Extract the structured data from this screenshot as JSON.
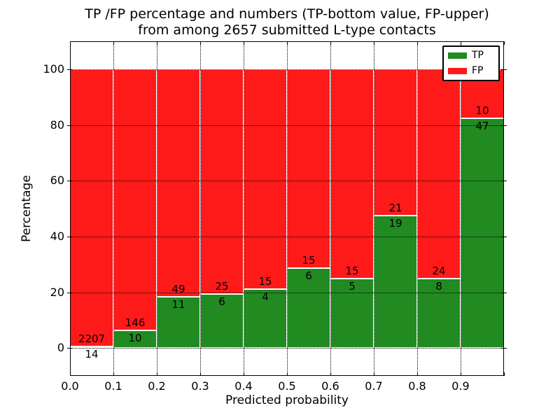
{
  "chart_data": {
    "type": "bar",
    "stacked": true,
    "title_lines": [
      "TP /FP percentage and numbers (TP-bottom value, FP-upper)",
      "from among 2657 submitted L-type contacts"
    ],
    "xlabel": "Predicted probability",
    "ylabel": "Percentage",
    "total_contacts": 2657,
    "bin_edges": [
      0.0,
      0.1,
      0.2,
      0.3,
      0.4,
      0.5,
      0.6,
      0.7,
      0.8,
      0.9,
      1.0
    ],
    "series": [
      {
        "name": "TP",
        "color": "#218a21",
        "counts": [
          14,
          10,
          11,
          6,
          4,
          6,
          5,
          19,
          8,
          47
        ]
      },
      {
        "name": "FP",
        "color": "#ff1a1a",
        "counts": [
          2207,
          146,
          49,
          25,
          15,
          15,
          15,
          21,
          24,
          10
        ]
      }
    ],
    "value_semantics": "each stack sums to 100%; green TP segment height = TP/(TP+FP)*100, red FP segment above it; segment count labels drawn at the TP/FP boundary (TP below, FP above)",
    "xticks": [
      "0.0",
      "0.1",
      "0.2",
      "0.3",
      "0.4",
      "0.5",
      "0.6",
      "0.7",
      "0.8",
      "0.9"
    ],
    "yticks": [
      "0",
      "20",
      "40",
      "60",
      "80",
      "100"
    ],
    "ytick_values": [
      0,
      20,
      40,
      60,
      80,
      100
    ],
    "xlim": [
      0.0,
      1.0
    ],
    "ylim": [
      -10,
      110
    ],
    "grid": true,
    "grid_style": "dotted black",
    "bar_edge_color": "#ffffff",
    "legend": {
      "position": "upper right",
      "entries": [
        {
          "label": "TP",
          "color": "#218a21"
        },
        {
          "label": "FP",
          "color": "#ff1a1a"
        }
      ]
    }
  }
}
